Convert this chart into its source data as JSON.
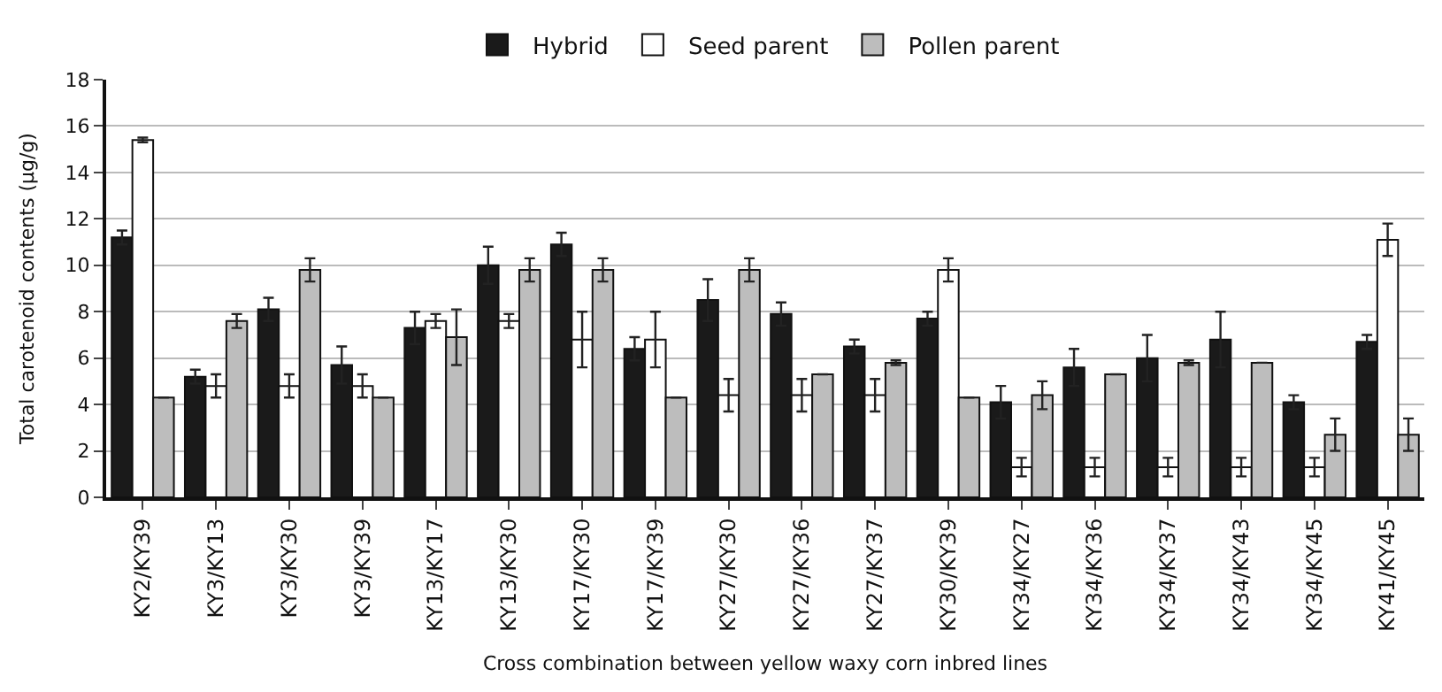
{
  "chart_data": {
    "type": "bar",
    "xlabel": "Cross combination between yellow waxy corn inbred lines",
    "ylabel": "Total carotenoid contents (μg/g)",
    "categories": [
      "KY2/KY39",
      "KY3/KY13",
      "KY3/KY30",
      "KY3/KY39",
      "KY13/KY17",
      "KY13/KY30",
      "KY17/KY30",
      "KY17/KY39",
      "KY27/KY30",
      "KY27/KY36",
      "KY27/KY37",
      "KY30/KY39",
      "KY34/KY27",
      "KY34/KY36",
      "KY34/KY37",
      "KY34/KY43",
      "KY34/KY45",
      "KY41/KY45"
    ],
    "series": [
      {
        "name": "Hybrid",
        "color": "#1a1a1a",
        "values": [
          11.2,
          5.2,
          8.1,
          5.7,
          7.3,
          10.0,
          10.9,
          6.4,
          8.5,
          7.9,
          6.5,
          7.7,
          4.1,
          5.6,
          6.0,
          6.8,
          4.1,
          6.7
        ],
        "errors": [
          0.3,
          0.3,
          0.5,
          0.8,
          0.7,
          0.8,
          0.5,
          0.5,
          0.9,
          0.5,
          0.3,
          0.3,
          0.7,
          0.8,
          1.0,
          1.2,
          0.3,
          0.3
        ]
      },
      {
        "name": "Seed parent",
        "color": "#ffffff",
        "values": [
          15.4,
          4.8,
          4.8,
          4.8,
          7.6,
          7.6,
          6.8,
          6.8,
          4.4,
          4.4,
          4.4,
          9.8,
          1.3,
          1.3,
          1.3,
          1.3,
          1.3,
          11.1
        ],
        "errors": [
          0.1,
          0.5,
          0.5,
          0.5,
          0.3,
          0.3,
          1.2,
          1.2,
          0.7,
          0.7,
          0.7,
          0.5,
          0.4,
          0.4,
          0.4,
          0.4,
          0.4,
          0.7
        ]
      },
      {
        "name": "Pollen parent",
        "color": "#bdbdbd",
        "values": [
          4.3,
          7.6,
          9.8,
          4.3,
          6.9,
          9.8,
          9.8,
          4.3,
          9.8,
          5.3,
          5.8,
          4.3,
          4.4,
          5.3,
          5.8,
          5.8,
          2.7,
          2.7
        ],
        "errors": [
          null,
          0.3,
          0.5,
          null,
          1.2,
          0.5,
          0.5,
          null,
          0.5,
          null,
          0.1,
          null,
          0.6,
          null,
          0.1,
          null,
          0.7,
          0.7
        ]
      }
    ],
    "ylim": [
      0,
      18
    ],
    "yticks": [
      0,
      2,
      4,
      6,
      8,
      10,
      12,
      14,
      16,
      18
    ],
    "grid": "y",
    "legend": "top"
  }
}
